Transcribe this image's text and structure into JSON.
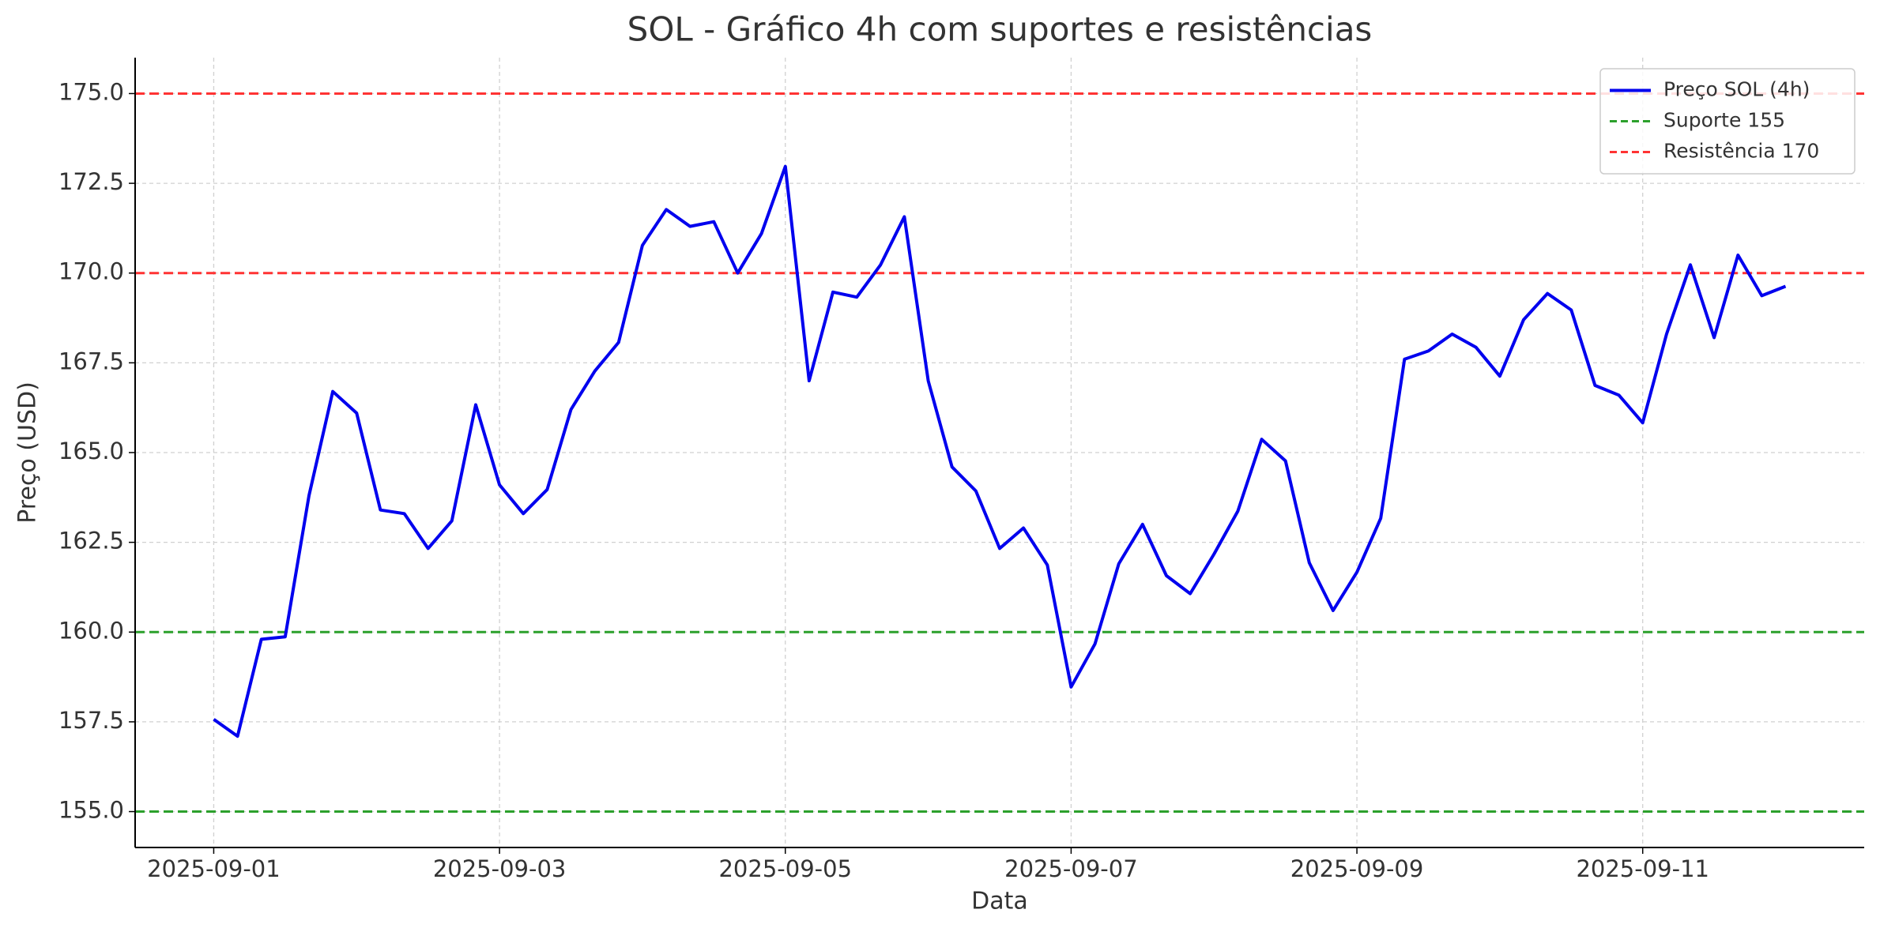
{
  "chart_data": {
    "type": "line",
    "title": "SOL - Gráfico 4h com suportes e resistências",
    "xlabel": "Data",
    "ylabel": "Preço (USD)",
    "x": [
      "2025-09-01T00:00",
      "2025-09-01T04:00",
      "2025-09-01T08:00",
      "2025-09-01T12:00",
      "2025-09-01T16:00",
      "2025-09-01T20:00",
      "2025-09-02T00:00",
      "2025-09-02T04:00",
      "2025-09-02T08:00",
      "2025-09-02T12:00",
      "2025-09-02T16:00",
      "2025-09-02T20:00",
      "2025-09-03T00:00",
      "2025-09-03T04:00",
      "2025-09-03T08:00",
      "2025-09-03T12:00",
      "2025-09-03T16:00",
      "2025-09-03T20:00",
      "2025-09-04T00:00",
      "2025-09-04T04:00",
      "2025-09-04T08:00",
      "2025-09-04T12:00",
      "2025-09-04T16:00",
      "2025-09-04T20:00",
      "2025-09-05T00:00",
      "2025-09-05T04:00",
      "2025-09-05T08:00",
      "2025-09-05T12:00",
      "2025-09-05T16:00",
      "2025-09-05T20:00",
      "2025-09-06T00:00",
      "2025-09-06T04:00",
      "2025-09-06T08:00",
      "2025-09-06T12:00",
      "2025-09-06T16:00",
      "2025-09-06T20:00",
      "2025-09-07T00:00",
      "2025-09-07T04:00",
      "2025-09-07T08:00",
      "2025-09-07T12:00",
      "2025-09-07T16:00",
      "2025-09-07T20:00",
      "2025-09-08T00:00",
      "2025-09-08T04:00",
      "2025-09-08T08:00",
      "2025-09-08T12:00",
      "2025-09-08T16:00",
      "2025-09-08T20:00",
      "2025-09-09T00:00",
      "2025-09-09T04:00",
      "2025-09-09T08:00",
      "2025-09-09T12:00",
      "2025-09-09T16:00",
      "2025-09-09T20:00",
      "2025-09-10T00:00",
      "2025-09-10T04:00",
      "2025-09-10T08:00",
      "2025-09-10T12:00",
      "2025-09-10T16:00",
      "2025-09-10T20:00",
      "2025-09-11T00:00",
      "2025-09-11T04:00",
      "2025-09-11T08:00",
      "2025-09-11T12:00",
      "2025-09-11T16:00",
      "2025-09-11T20:00",
      "2025-09-12T00:00"
    ],
    "series": [
      {
        "name": "Preço SOL (4h)",
        "color": "#0000ee",
        "values": [
          157.57,
          157.1,
          159.8,
          159.87,
          163.8,
          166.7,
          166.1,
          163.4,
          163.3,
          162.33,
          163.1,
          166.33,
          164.1,
          163.3,
          163.97,
          166.2,
          167.27,
          168.07,
          170.77,
          171.77,
          171.3,
          171.43,
          170.0,
          171.1,
          172.97,
          167.0,
          169.47,
          169.33,
          170.23,
          171.57,
          167.0,
          164.6,
          163.93,
          162.33,
          162.9,
          161.87,
          158.47,
          159.67,
          161.9,
          163.0,
          161.57,
          161.07,
          162.17,
          163.37,
          165.37,
          164.77,
          161.93,
          160.6,
          161.67,
          163.17,
          167.6,
          167.83,
          168.3,
          167.93,
          167.13,
          168.7,
          169.43,
          168.97,
          166.87,
          166.6,
          165.83,
          168.3,
          170.23,
          168.2,
          170.5,
          169.37,
          169.63
        ]
      }
    ],
    "hlines": [
      {
        "value": 155,
        "name": "Suporte 155",
        "color": "#2ca02c"
      },
      {
        "value": 160,
        "color": "#2ca02c"
      },
      {
        "value": 170,
        "name": "Resistência 170",
        "color": "#ff3333"
      },
      {
        "value": 175,
        "color": "#ff3333"
      }
    ],
    "xlim": [
      "2025-08-31T10:48",
      "2025-09-12T13:12"
    ],
    "xticks": [
      "2025-09-01",
      "2025-09-03",
      "2025-09-05",
      "2025-09-07",
      "2025-09-09",
      "2025-09-11"
    ],
    "ylim": [
      154,
      176
    ],
    "yticks": [
      {
        "value": 155,
        "label": "155.0"
      },
      {
        "value": 157.5,
        "label": "157.5"
      },
      {
        "value": 160,
        "label": "160.0"
      },
      {
        "value": 162.5,
        "label": "162.5"
      },
      {
        "value": 165,
        "label": "165.0"
      },
      {
        "value": 167.5,
        "label": "167.5"
      },
      {
        "value": 170,
        "label": "170.0"
      },
      {
        "value": 172.5,
        "label": "172.5"
      },
      {
        "value": 175,
        "label": "175.0"
      }
    ],
    "grid": true,
    "legend": "upper right"
  }
}
